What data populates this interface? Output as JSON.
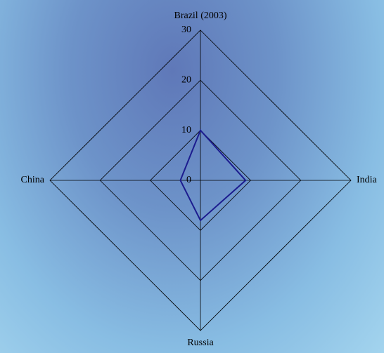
{
  "chart_data": {
    "type": "radar",
    "categories": [
      "Brazil (2003)",
      "India",
      "Russia",
      "China"
    ],
    "series": [
      {
        "color": "#1c1c8f",
        "values": [
          10,
          9,
          8,
          4
        ]
      }
    ],
    "ylim": [
      0,
      30
    ],
    "yticks": [
      0,
      10,
      20,
      30
    ],
    "grid": true
  }
}
